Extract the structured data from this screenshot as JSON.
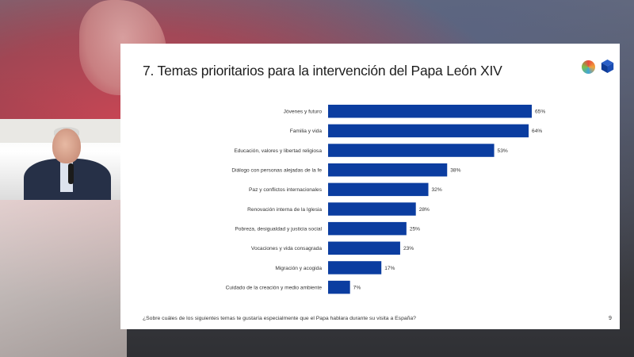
{
  "slide": {
    "title": "7. Temas prioritarios para la intervención del Papa León XIV",
    "footnote": "¿Sobre cuáles de los siguientes temas te gustaría especialmente que el Papa hablara durante su visita a España?",
    "page_number": "9"
  },
  "chart_data": {
    "type": "bar",
    "orientation": "horizontal",
    "categories": [
      "Jóvenes y futuro",
      "Familia y vida",
      "Educación, valores y libertad religiosa",
      "Diálogo con personas alejadas de la fe",
      "Paz y conflictos internacionales",
      "Renovación interna de la Iglesia",
      "Pobreza, desigualdad y justicia social",
      "Vocaciones y vida consagrada",
      "Migración y acogida",
      "Cuidado de la creación y medio ambiente"
    ],
    "values": [
      65,
      64,
      53,
      38,
      32,
      28,
      25,
      23,
      17,
      7
    ],
    "value_labels": [
      "65%",
      "64%",
      "53%",
      "38%",
      "32%",
      "28%",
      "25%",
      "23%",
      "17%",
      "7%"
    ],
    "unit": "%",
    "xlim": [
      0,
      65
    ],
    "bar_color": "#0b3da0",
    "grid": false,
    "legend": "none"
  }
}
